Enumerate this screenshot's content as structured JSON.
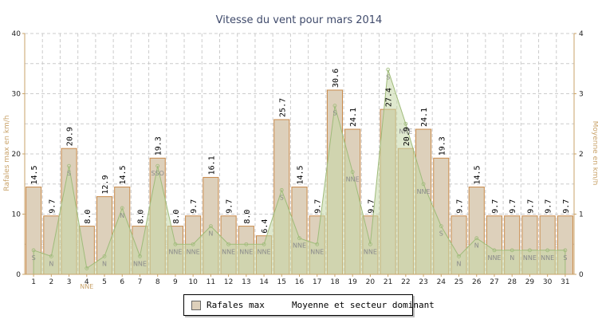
{
  "chart_data": {
    "type": "bar",
    "title": "Vitesse du vent pour mars 2014",
    "ylabel_left": "Rafales max en km/h",
    "ylabel_right": "Moyenne en km/h",
    "ylim_left": [
      0,
      40
    ],
    "ylim_right": [
      0,
      4
    ],
    "yticks_left": [
      "0",
      "10",
      "20",
      "30",
      "40"
    ],
    "yticks_right": [
      "0",
      "1",
      "2",
      "3",
      "4"
    ],
    "grid": true,
    "legend_position": "bottom",
    "categories": [
      "1",
      "2",
      "3",
      "4",
      "5",
      "6",
      "7",
      "8",
      "9",
      "10",
      "11",
      "12",
      "13",
      "14",
      "15",
      "16",
      "17",
      "18",
      "19",
      "20",
      "21",
      "22",
      "23",
      "24",
      "25",
      "26",
      "27",
      "28",
      "29",
      "30",
      "31"
    ],
    "series": [
      {
        "name": "Rafales max",
        "type": "bar",
        "axis": "left",
        "values": [
          14.5,
          9.7,
          20.9,
          8.0,
          12.9,
          14.5,
          8.0,
          19.3,
          8.0,
          9.7,
          16.1,
          9.7,
          8.0,
          6.4,
          25.7,
          14.5,
          9.7,
          30.6,
          24.1,
          9.7,
          27.4,
          20.9,
          24.1,
          19.3,
          9.7,
          14.5,
          9.7,
          9.7,
          9.7,
          9.7,
          9.7
        ],
        "labels": [
          "14.5",
          "9.7",
          "20.9",
          "8.0",
          "12.9",
          "14.5",
          "8.0",
          "19.3",
          "8.0",
          "9.7",
          "16.1",
          "9.7",
          "8.0",
          "6.4",
          "25.7",
          "14.5",
          "9.7",
          "30.6",
          "24.1",
          "9.7",
          "27.4",
          "20.9",
          "24.1",
          "19.3",
          "9.7",
          "14.5",
          "9.7",
          "9.7",
          "9.7",
          "9.7",
          "9.7"
        ]
      },
      {
        "name": "Moyenne et secteur dominant",
        "type": "area",
        "axis": "right",
        "values": [
          0.4,
          0.3,
          1.8,
          0.1,
          0.3,
          1.1,
          0.3,
          1.8,
          0.5,
          0.5,
          0.8,
          0.5,
          0.5,
          0.5,
          1.4,
          0.6,
          0.5,
          2.8,
          1.7,
          0.5,
          3.4,
          2.5,
          1.5,
          0.8,
          0.3,
          0.6,
          0.4,
          0.4,
          0.4,
          0.4,
          0.4
        ],
        "directions": [
          "S",
          "N",
          "S",
          "NNE",
          "N",
          "N",
          "NNE",
          "SSO",
          "NNE",
          "NNE",
          "N",
          "NNE",
          "NNE",
          "NNE",
          "S",
          "NNE",
          "NNE",
          "S",
          "NNE",
          "NNE",
          "S",
          "NNE",
          "NNE",
          "S",
          "N",
          "N",
          "NNE",
          "N",
          "NNE",
          "NNE",
          "S"
        ]
      }
    ]
  },
  "legend": {
    "items": [
      "Rafales max",
      "Moyenne et secteur dominant"
    ],
    "colors": [
      "#ddd0bb",
      "#c5d7a6"
    ]
  },
  "colors": {
    "bar_fill": "#ddd0bb",
    "bar_stroke": "#c98a4a",
    "area_fill": "#c5d7a6",
    "area_stroke": "#9fbb7a",
    "grid": "#cccccc",
    "axis": "#c9a36a"
  }
}
